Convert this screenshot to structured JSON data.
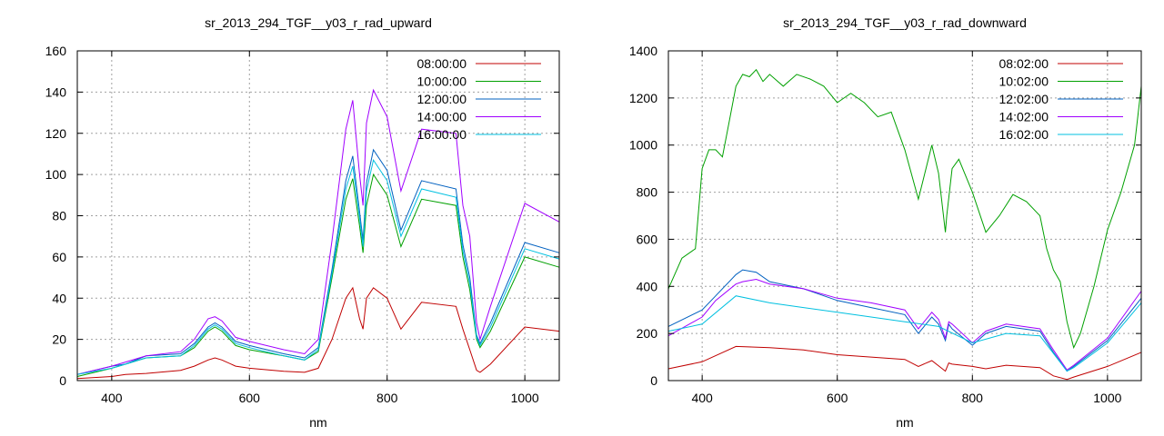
{
  "chart_data": [
    {
      "type": "line",
      "title": "sr_2013_294_TGF__y03_r_rad_upward",
      "xlabel": "nm",
      "ylabel": "",
      "xlim": [
        350,
        1050
      ],
      "ylim": [
        0,
        160
      ],
      "xticks": [
        400,
        600,
        800,
        1000
      ],
      "yticks": [
        0,
        20,
        40,
        60,
        80,
        100,
        120,
        140,
        160
      ],
      "grid": true,
      "legend_position": "top-right",
      "series": [
        {
          "name": "08:00:00",
          "color": "#c00000",
          "x": [
            350,
            400,
            420,
            450,
            500,
            520,
            540,
            550,
            560,
            580,
            600,
            650,
            680,
            700,
            720,
            740,
            750,
            760,
            765,
            770,
            780,
            800,
            820,
            850,
            900,
            910,
            920,
            930,
            935,
            950,
            1000,
            1050
          ],
          "y": [
            1,
            2,
            3,
            3.5,
            5,
            7,
            10,
            11,
            10,
            7,
            6,
            4.5,
            4,
            6,
            20,
            40,
            45,
            30,
            25,
            40,
            45,
            40,
            25,
            38,
            36,
            25,
            15,
            5,
            4,
            8,
            26,
            24
          ]
        },
        {
          "name": "10:00:00",
          "color": "#00a000",
          "x": [
            350,
            400,
            420,
            450,
            500,
            520,
            540,
            550,
            560,
            580,
            600,
            650,
            680,
            700,
            720,
            740,
            750,
            760,
            765,
            770,
            780,
            800,
            820,
            850,
            900,
            910,
            920,
            930,
            935,
            950,
            1000,
            1050
          ],
          "y": [
            2,
            6,
            8,
            11,
            12,
            16,
            24,
            26,
            24,
            17,
            15,
            12,
            10,
            14,
            50,
            88,
            98,
            75,
            62,
            85,
            100,
            90,
            65,
            88,
            85,
            60,
            44,
            20,
            16,
            24,
            60,
            55
          ]
        },
        {
          "name": "12:00:00",
          "color": "#0060c0",
          "x": [
            350,
            400,
            420,
            450,
            500,
            520,
            540,
            550,
            560,
            580,
            600,
            650,
            680,
            700,
            720,
            740,
            750,
            760,
            765,
            770,
            780,
            800,
            820,
            850,
            900,
            910,
            920,
            930,
            935,
            950,
            1000,
            1050
          ],
          "y": [
            3,
            7,
            8,
            12,
            13,
            18,
            26,
            28,
            26,
            19,
            17,
            13,
            11,
            16,
            54,
            97,
            109,
            82,
            68,
            96,
            112,
            102,
            73,
            97,
            93,
            66,
            50,
            22,
            18,
            28,
            67,
            62
          ]
        },
        {
          "name": "14:00:00",
          "color": "#a000ff",
          "x": [
            350,
            400,
            420,
            450,
            500,
            520,
            540,
            550,
            560,
            580,
            600,
            650,
            680,
            700,
            720,
            740,
            750,
            760,
            765,
            770,
            780,
            800,
            820,
            850,
            900,
            910,
            920,
            930,
            935,
            950,
            1000,
            1050
          ],
          "y": [
            3,
            7,
            9,
            12,
            14,
            20,
            30,
            31,
            29,
            21,
            19,
            15,
            13,
            20,
            68,
            122,
            136,
            100,
            85,
            125,
            141,
            128,
            92,
            122,
            120,
            85,
            70,
            28,
            20,
            36,
            86,
            77
          ]
        },
        {
          "name": "16:00:00",
          "color": "#00c0e0",
          "x": [
            350,
            400,
            420,
            450,
            500,
            520,
            540,
            550,
            560,
            580,
            600,
            650,
            680,
            700,
            720,
            740,
            750,
            760,
            765,
            770,
            780,
            800,
            820,
            850,
            900,
            910,
            920,
            930,
            935,
            950,
            1000,
            1050
          ],
          "y": [
            3,
            6,
            8,
            11,
            12,
            17,
            25,
            27,
            25,
            18,
            16,
            12,
            10,
            15,
            52,
            93,
            104,
            79,
            65,
            92,
            107,
            97,
            70,
            93,
            89,
            63,
            47,
            21,
            17,
            26,
            64,
            59
          ]
        }
      ]
    },
    {
      "type": "line",
      "title": "sr_2013_294_TGF__y03_r_rad_downward",
      "xlabel": "nm",
      "ylabel": "",
      "xlim": [
        350,
        1050
      ],
      "ylim": [
        0,
        1400
      ],
      "xticks": [
        400,
        600,
        800,
        1000
      ],
      "yticks": [
        0,
        200,
        400,
        600,
        800,
        1000,
        1200,
        1400
      ],
      "grid": true,
      "legend_position": "top-right",
      "series": [
        {
          "name": "08:02:00",
          "color": "#c00000",
          "x": [
            350,
            400,
            450,
            500,
            550,
            600,
            650,
            700,
            720,
            740,
            760,
            765,
            770,
            800,
            820,
            850,
            900,
            920,
            940,
            950,
            1000,
            1050
          ],
          "y": [
            50,
            80,
            145,
            140,
            130,
            110,
            100,
            90,
            60,
            85,
            40,
            75,
            70,
            60,
            50,
            65,
            55,
            20,
            5,
            15,
            60,
            120
          ]
        },
        {
          "name": "10:02:00",
          "color": "#00a000",
          "x": [
            350,
            370,
            390,
            400,
            410,
            420,
            430,
            440,
            450,
            460,
            470,
            480,
            490,
            500,
            520,
            540,
            560,
            580,
            600,
            620,
            640,
            660,
            680,
            700,
            720,
            740,
            750,
            760,
            762,
            770,
            780,
            800,
            820,
            840,
            860,
            880,
            900,
            910,
            920,
            930,
            940,
            950,
            960,
            980,
            1000,
            1020,
            1040,
            1050
          ],
          "y": [
            390,
            520,
            560,
            900,
            980,
            980,
            950,
            1100,
            1250,
            1300,
            1290,
            1320,
            1270,
            1300,
            1250,
            1300,
            1280,
            1250,
            1180,
            1220,
            1180,
            1120,
            1140,
            980,
            770,
            1000,
            880,
            630,
            700,
            900,
            940,
            800,
            630,
            700,
            790,
            760,
            700,
            560,
            470,
            420,
            250,
            140,
            200,
            400,
            640,
            800,
            1000,
            1250
          ]
        },
        {
          "name": "12:02:00",
          "color": "#0060c0",
          "x": [
            350,
            400,
            420,
            450,
            460,
            480,
            500,
            550,
            600,
            650,
            700,
            720,
            740,
            750,
            760,
            765,
            770,
            800,
            820,
            850,
            900,
            920,
            940,
            950,
            1000,
            1050
          ],
          "y": [
            230,
            300,
            360,
            450,
            470,
            460,
            420,
            390,
            340,
            310,
            280,
            200,
            270,
            240,
            170,
            240,
            220,
            150,
            200,
            230,
            210,
            120,
            40,
            60,
            170,
            350
          ]
        },
        {
          "name": "14:02:00",
          "color": "#a000ff",
          "x": [
            350,
            400,
            420,
            450,
            460,
            480,
            500,
            550,
            600,
            650,
            700,
            720,
            740,
            750,
            760,
            765,
            770,
            800,
            820,
            850,
            900,
            920,
            940,
            950,
            1000,
            1050
          ],
          "y": [
            190,
            270,
            340,
            410,
            420,
            430,
            410,
            390,
            350,
            330,
            300,
            220,
            290,
            260,
            180,
            250,
            240,
            160,
            210,
            240,
            220,
            130,
            45,
            65,
            180,
            380
          ]
        },
        {
          "name": "16:02:00",
          "color": "#00c0e0",
          "x": [
            350,
            400,
            450,
            500,
            550,
            600,
            650,
            700,
            750,
            800,
            850,
            900,
            940,
            950,
            1000,
            1050
          ],
          "y": [
            210,
            240,
            360,
            330,
            310,
            290,
            270,
            250,
            230,
            160,
            200,
            190,
            40,
            55,
            160,
            330
          ]
        }
      ]
    }
  ]
}
